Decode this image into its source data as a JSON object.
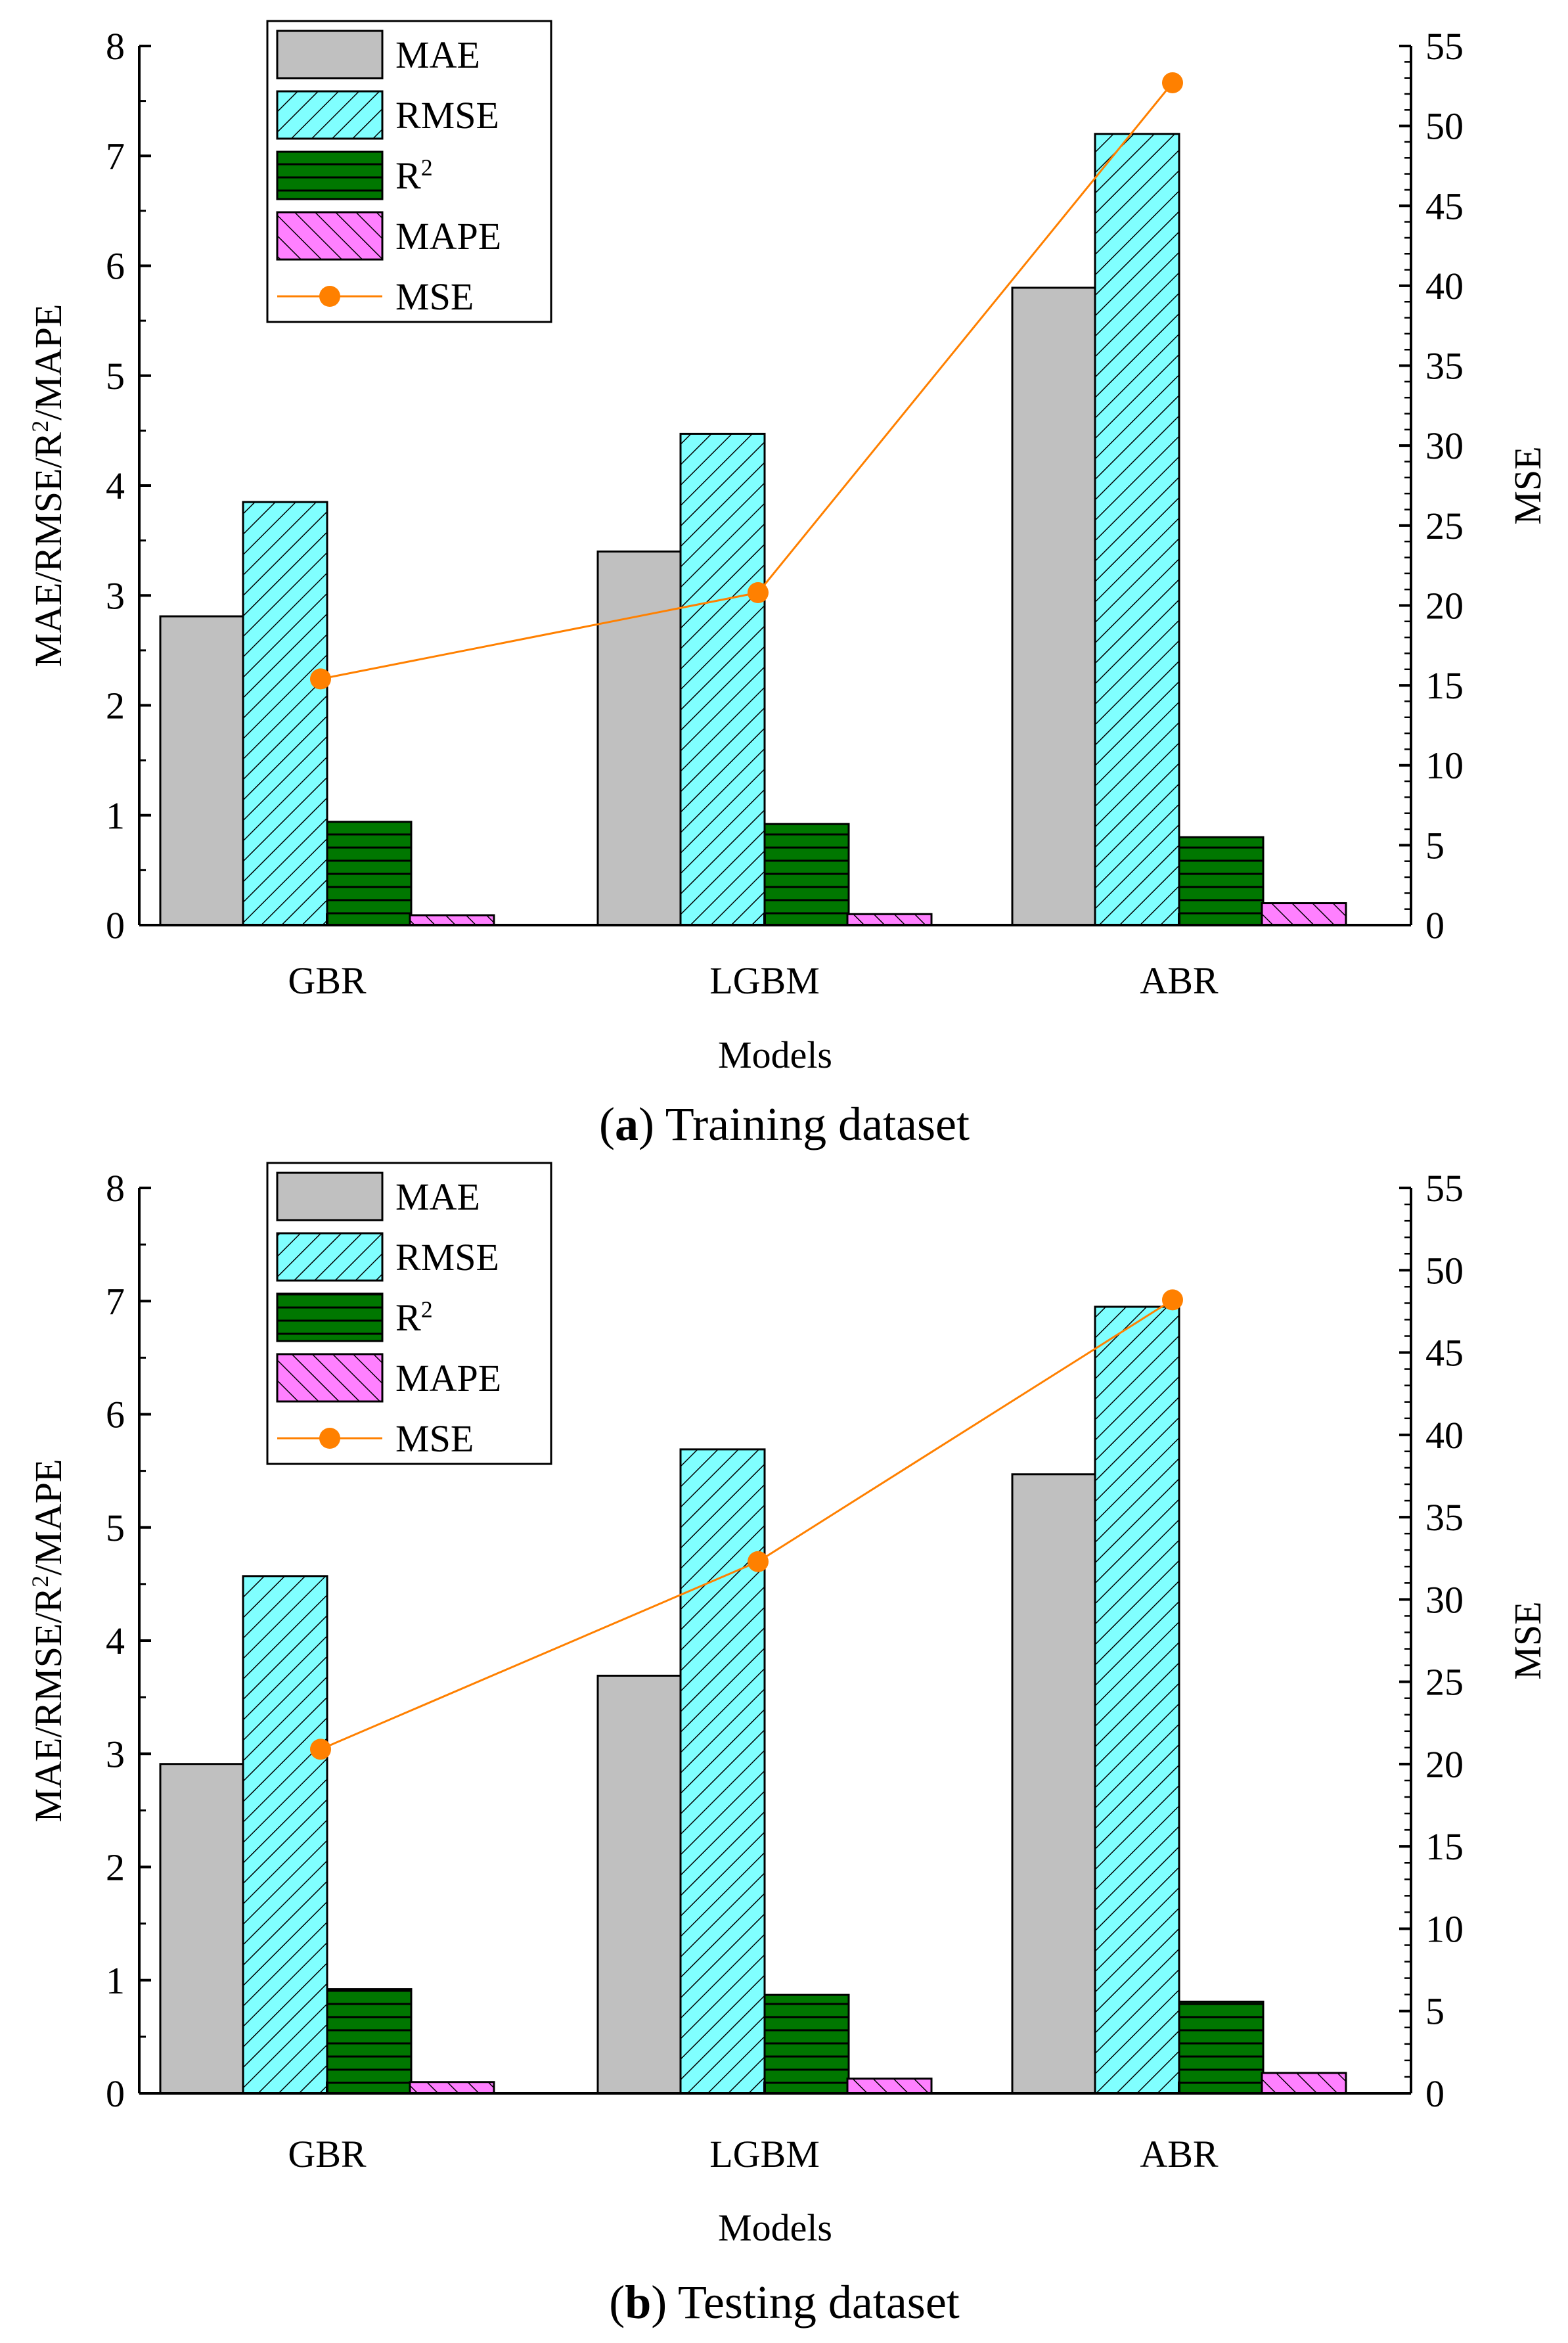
{
  "colors": {
    "mae_fill": "#c0c0c0",
    "rmse_fill": "#80ffff",
    "r2_fill": "#007700",
    "mape_fill": "#ff80ff",
    "mse_line": "#ff8000",
    "axis": "#000000"
  },
  "chart_data": [
    {
      "type": "bar",
      "caption": {
        "letter": "a",
        "open": "(",
        "close": ") ",
        "text": "Training dataset"
      },
      "categories": [
        "GBR",
        "LGBM",
        "ABR"
      ],
      "xlabel": "Models",
      "ylabel_left": "MAE/RMSE/R²/MAPE",
      "ylabel_right": "MSE",
      "ylim_left": [
        0,
        8
      ],
      "ylim_right": [
        0,
        55
      ],
      "yticks_left": [
        "0",
        "1",
        "2",
        "3",
        "4",
        "5",
        "6",
        "7",
        "8"
      ],
      "yticks_right": [
        "0",
        "5",
        "10",
        "15",
        "20",
        "25",
        "30",
        "35",
        "40",
        "45",
        "50",
        "55"
      ],
      "grid": false,
      "legend_position": "top-left",
      "legend": [
        "MAE",
        "RMSE",
        "R²",
        "MAPE",
        "MSE"
      ],
      "series": [
        {
          "name": "MAE",
          "axis": "left",
          "values": [
            2.81,
            3.4,
            5.8
          ]
        },
        {
          "name": "RMSE",
          "axis": "left",
          "values": [
            3.85,
            4.47,
            7.2
          ]
        },
        {
          "name": "R²",
          "axis": "left",
          "values": [
            0.94,
            0.92,
            0.8
          ]
        },
        {
          "name": "MAPE",
          "axis": "left",
          "values": [
            0.09,
            0.1,
            0.2
          ]
        },
        {
          "name": "MSE",
          "axis": "right",
          "type": "line",
          "values": [
            15.4,
            20.8,
            52.7
          ]
        }
      ]
    },
    {
      "type": "bar",
      "caption": {
        "letter": "b",
        "open": "(",
        "close": ") ",
        "text": "Testing dataset"
      },
      "categories": [
        "GBR",
        "LGBM",
        "ABR"
      ],
      "xlabel": "Models",
      "ylabel_left": "MAE/RMSE/R²/MAPE",
      "ylabel_right": "MSE",
      "ylim_left": [
        0,
        8
      ],
      "ylim_right": [
        0,
        55
      ],
      "yticks_left": [
        "0",
        "1",
        "2",
        "3",
        "4",
        "5",
        "6",
        "7",
        "8"
      ],
      "yticks_right": [
        "0",
        "5",
        "10",
        "15",
        "20",
        "25",
        "30",
        "35",
        "40",
        "45",
        "50",
        "55"
      ],
      "grid": false,
      "legend_position": "top-left",
      "legend": [
        "MAE",
        "RMSE",
        "R²",
        "MAPE",
        "MSE"
      ],
      "series": [
        {
          "name": "MAE",
          "axis": "left",
          "values": [
            2.91,
            3.69,
            5.47
          ]
        },
        {
          "name": "RMSE",
          "axis": "left",
          "values": [
            4.57,
            5.69,
            6.95
          ]
        },
        {
          "name": "R²",
          "axis": "left",
          "values": [
            0.92,
            0.87,
            0.81
          ]
        },
        {
          "name": "MAPE",
          "axis": "left",
          "values": [
            0.1,
            0.13,
            0.18
          ]
        },
        {
          "name": "MSE",
          "axis": "right",
          "type": "line",
          "values": [
            20.9,
            32.3,
            48.2
          ]
        }
      ]
    }
  ]
}
